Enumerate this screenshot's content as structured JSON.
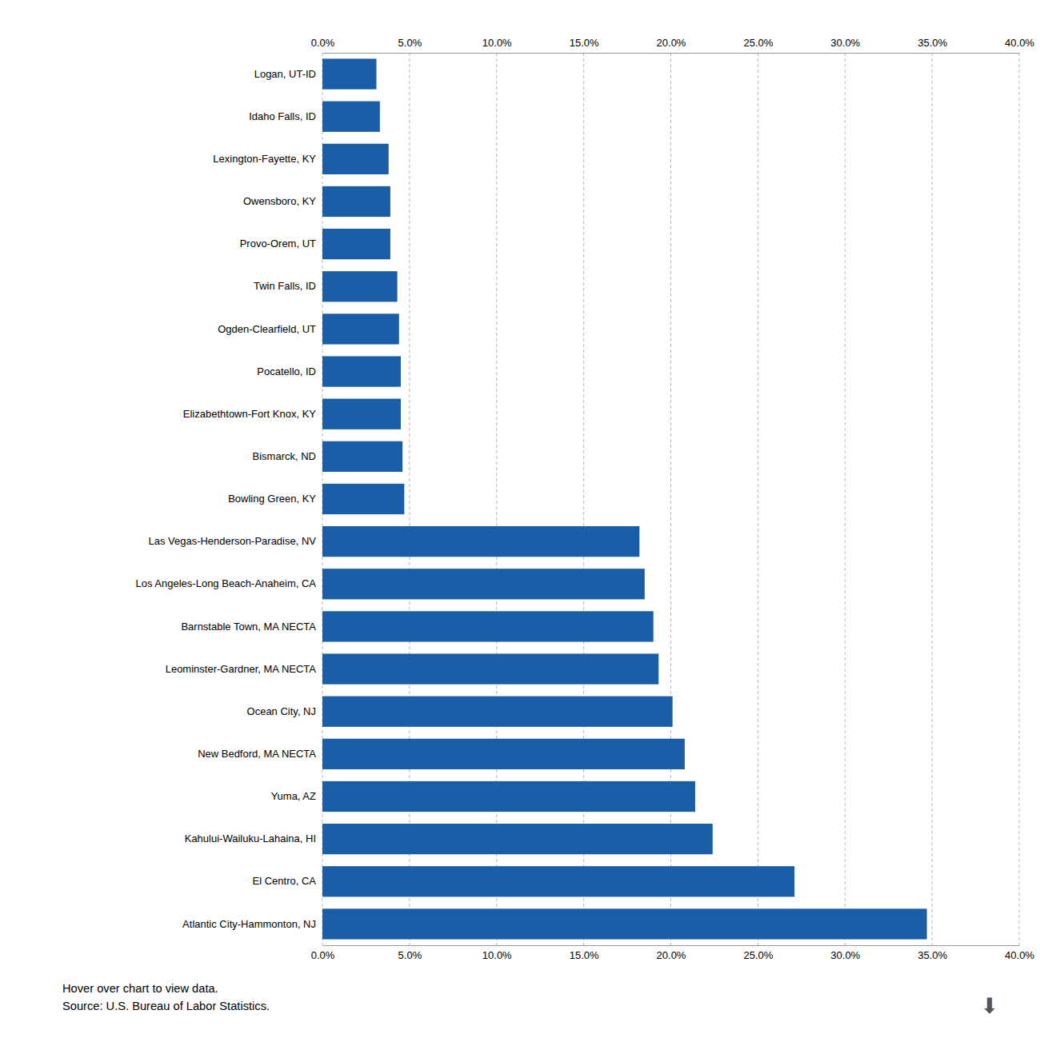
{
  "chart_data": {
    "type": "bar",
    "orientation": "horizontal",
    "categories": [
      "Atlantic City-Hammonton, NJ",
      "El Centro, CA",
      "Kahului-Wailuku-Lahaina, HI",
      "Yuma, AZ",
      "New Bedford, MA NECTA",
      "Ocean City, NJ",
      "Leominster-Gardner, MA NECTA",
      "Barnstable Town, MA NECTA",
      "Los Angeles-Long Beach-Anaheim, CA",
      "Las Vegas-Henderson-Paradise, NV",
      "Bowling Green, KY",
      "Bismarck, ND",
      "Elizabethtown-Fort Knox, KY",
      "Pocatello, ID",
      "Ogden-Clearfield, UT",
      "Twin Falls, ID",
      "Provo-Orem, UT",
      "Owensboro, KY",
      "Lexington-Fayette, KY",
      "Idaho Falls, ID",
      "Logan, UT-ID"
    ],
    "values": [
      0.347,
      0.271,
      0.224,
      0.214,
      0.208,
      0.201,
      0.193,
      0.19,
      0.185,
      0.182,
      0.047,
      0.046,
      0.045,
      0.045,
      0.044,
      0.043,
      0.039,
      0.039,
      0.038,
      0.033,
      0.031
    ],
    "color": "#1a5ea8",
    "xlim": [
      0,
      0.4
    ],
    "xticks": [
      {
        "value": 0.0,
        "label": "0.0%"
      },
      {
        "value": 0.05,
        "label": "5.0%"
      },
      {
        "value": 0.1,
        "label": "10.0%"
      },
      {
        "value": 0.15,
        "label": "15.0%"
      },
      {
        "value": 0.2,
        "label": "20.0%"
      },
      {
        "value": 0.25,
        "label": "25.0%"
      },
      {
        "value": 0.3,
        "label": "30.0%"
      },
      {
        "value": 0.35,
        "label": "35.0%"
      },
      {
        "value": 0.4,
        "label": "40.0%"
      }
    ],
    "grid": true,
    "annotations": [
      "Hover over chart to view data.",
      "Source: U.S. Bureau of Labor Statistics.",
      "⬇"
    ]
  }
}
